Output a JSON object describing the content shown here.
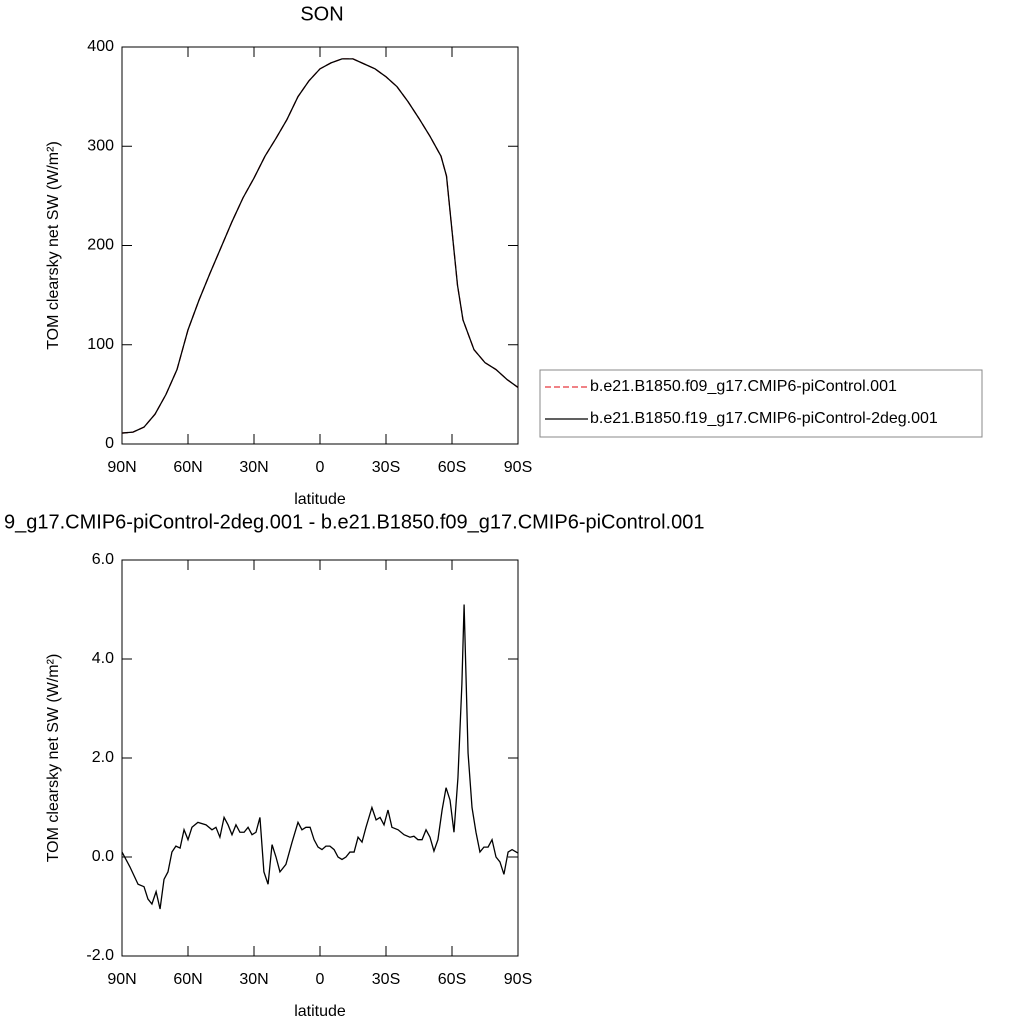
{
  "chart_data": [
    {
      "type": "line",
      "title": "SON",
      "xlabel": "latitude",
      "ylabel": "TOM clearsky net SW (W/m²)",
      "x": [
        90,
        85,
        80,
        75,
        70,
        65,
        60,
        55,
        50,
        45,
        40,
        35,
        30,
        25,
        20,
        15,
        10,
        5,
        0,
        -5,
        -10,
        -15,
        -20,
        -25,
        -30,
        -35,
        -40,
        -45,
        -50,
        -55,
        -57.5,
        -60,
        -62.5,
        -65,
        -70,
        -75,
        -80,
        -85,
        -90
      ],
      "series": [
        {
          "name": "b.e21.B1850.f09_g17.CMIP6-piControl.001",
          "color": "#e8383d",
          "dash": true,
          "values": [
            11,
            12,
            17,
            30,
            50,
            75,
            115,
            145,
            172,
            198,
            224,
            248,
            268,
            290,
            308,
            327,
            350,
            366,
            378,
            384,
            388,
            388,
            383,
            378,
            370,
            360,
            345,
            328,
            310,
            290,
            270,
            215,
            160,
            125,
            95,
            82,
            75,
            65,
            57
          ]
        },
        {
          "name": "b.e21.B1850.f19_g17.CMIP6-piControl-2deg.001",
          "color": "#000000",
          "dash": false,
          "values": [
            11,
            12,
            17,
            30,
            50,
            75,
            115,
            145,
            172,
            198,
            224,
            248,
            268,
            290,
            308,
            327,
            350,
            366,
            378,
            384,
            388,
            388,
            383,
            378,
            370,
            360,
            345,
            328,
            310,
            290,
            270,
            215,
            160,
            125,
            95,
            82,
            75,
            65,
            57
          ]
        }
      ],
      "xlim": [
        90,
        -90
      ],
      "xticks": [
        {
          "value": 90,
          "label": "90N"
        },
        {
          "value": 60,
          "label": "60N"
        },
        {
          "value": 30,
          "label": "30N"
        },
        0,
        {
          "value": -30,
          "label": "30S"
        },
        {
          "value": -60,
          "label": "60S"
        },
        {
          "value": -90,
          "label": "90S"
        }
      ],
      "ylim": [
        0,
        400
      ],
      "yticks": [
        0,
        100,
        200,
        300,
        400
      ],
      "legend": "right"
    },
    {
      "type": "line",
      "title": "9_g17.CMIP6-piControl-2deg.001 - b.e21.B1850.f09_g17.CMIP6-piControl.001",
      "xlabel": "latitude",
      "ylabel": "TOM clearsky net SW (W/m²)",
      "x": [
        90,
        86.4,
        82.7,
        80,
        78.2,
        76.4,
        74.5,
        72.7,
        70.9,
        69.1,
        67.3,
        65.5,
        63.6,
        61.8,
        60,
        58.2,
        55.5,
        51.8,
        49.1,
        47.3,
        45.5,
        43.6,
        41.8,
        40,
        38.2,
        36.4,
        34.5,
        32.7,
        30.9,
        29.1,
        27.3,
        25.5,
        23.6,
        21.8,
        20,
        18.2,
        15.5,
        12.7,
        10,
        8.2,
        6.4,
        4.5,
        2.7,
        0.9,
        -0.9,
        -2.7,
        -4.5,
        -6.4,
        -8.2,
        -10,
        -11.8,
        -13.6,
        -15.5,
        -17.3,
        -19.1,
        -20.9,
        -23.6,
        -25.5,
        -27.3,
        -29.1,
        -30.9,
        -32.7,
        -35.5,
        -38.2,
        -40.9,
        -42.7,
        -44.5,
        -46.4,
        -48.2,
        -50,
        -51.8,
        -53.6,
        -55.5,
        -57.3,
        -59.1,
        -60.9,
        -62.7,
        -64.5,
        -65.5,
        -67.3,
        -69.1,
        -70.9,
        -72.7,
        -74.5,
        -76.4,
        -78.2,
        -80,
        -81.8,
        -83.6,
        -85.5,
        -87.3,
        -90
      ],
      "series": [
        {
          "color": "#000000",
          "dash": false,
          "values": [
            0.1,
            -0.2,
            -0.55,
            -0.6,
            -0.85,
            -0.95,
            -0.7,
            -1.05,
            -0.45,
            -0.3,
            0.1,
            0.22,
            0.18,
            0.55,
            0.35,
            0.6,
            0.7,
            0.65,
            0.55,
            0.6,
            0.4,
            0.8,
            0.65,
            0.45,
            0.65,
            0.5,
            0.5,
            0.6,
            0.45,
            0.5,
            0.8,
            -0.3,
            -0.55,
            0.25,
            0,
            -0.3,
            -0.15,
            0.3,
            0.7,
            0.55,
            0.6,
            0.6,
            0.35,
            0.2,
            0.15,
            0.22,
            0.22,
            0.15,
            0,
            -0.05,
            0,
            0.1,
            0.1,
            0.4,
            0.3,
            0.6,
            1.0,
            0.75,
            0.8,
            0.65,
            0.95,
            0.6,
            0.55,
            0.45,
            0.4,
            0.42,
            0.35,
            0.35,
            0.55,
            0.4,
            0.12,
            0.35,
            0.95,
            1.4,
            1.15,
            0.5,
            1.6,
            3.5,
            5.1,
            2.1,
            1.0,
            0.5,
            0.1,
            0.2,
            0.2,
            0.35,
            0,
            -0.1,
            -0.35,
            0.1,
            0.15,
            0.08
          ]
        }
      ],
      "xlim": [
        90,
        -90
      ],
      "xticks": [
        {
          "value": 90,
          "label": "90N"
        },
        {
          "value": 60,
          "label": "60N"
        },
        {
          "value": 30,
          "label": "30N"
        },
        0,
        {
          "value": -30,
          "label": "30S"
        },
        {
          "value": -60,
          "label": "60S"
        },
        {
          "value": -90,
          "label": "90S"
        }
      ],
      "ylim": [
        -2,
        6
      ],
      "yticks": [
        {
          "value": -2,
          "label": "-2.0"
        },
        {
          "value": 0,
          "label": "0.0"
        },
        {
          "value": 2,
          "label": "2.0"
        },
        {
          "value": 4,
          "label": "4.0"
        },
        {
          "value": 6,
          "label": "6.0"
        }
      ]
    }
  ]
}
